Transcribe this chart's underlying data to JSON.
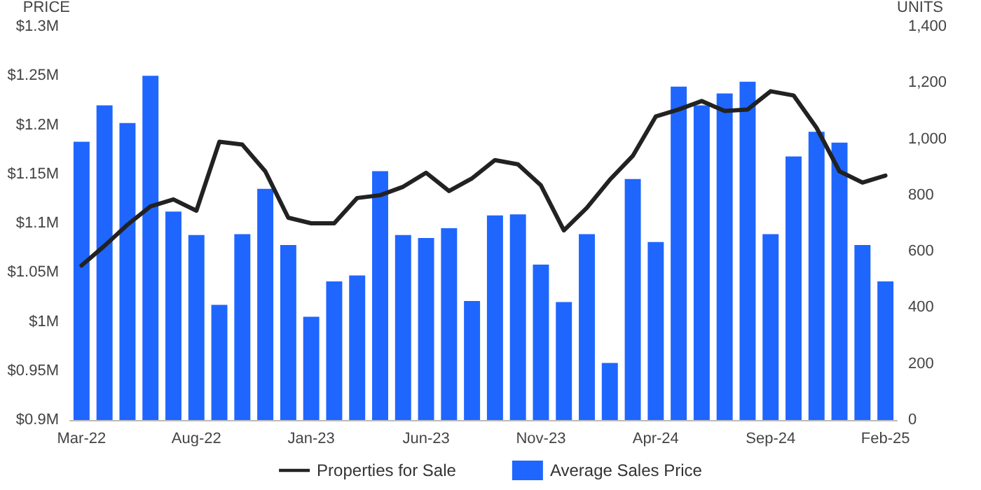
{
  "chart_data": {
    "type": "bar",
    "ylabel": "PRICE",
    "y2label": "UNITS",
    "categories": [
      "Mar-22",
      null,
      null,
      null,
      null,
      "Aug-22",
      null,
      null,
      null,
      null,
      "Jan-23",
      null,
      null,
      null,
      null,
      "Jun-23",
      null,
      null,
      null,
      null,
      "Nov-23",
      null,
      null,
      null,
      null,
      "Apr-24",
      null,
      null,
      null,
      null,
      "Sep-24",
      null,
      null,
      null,
      null,
      "Feb-25"
    ],
    "series": [
      {
        "name": "Properties for Sale",
        "type": "line",
        "axis": "y2",
        "color": "#222222",
        "values": [
          550,
          620,
          695,
          760,
          785,
          745,
          990,
          980,
          885,
          720,
          700,
          700,
          790,
          800,
          830,
          880,
          815,
          860,
          925,
          910,
          835,
          675,
          755,
          855,
          940,
          1080,
          1105,
          1135,
          1100,
          1105,
          1170,
          1155,
          1040,
          885,
          845,
          870
        ]
      },
      {
        "name": "Average Sales Price",
        "axis": "y",
        "color": "#1f66ff",
        "values": [
          1.183,
          1.22,
          1.202,
          1.25,
          1.112,
          1.088,
          1.017,
          1.089,
          1.135,
          1.078,
          1.005,
          1.041,
          1.047,
          1.153,
          1.088,
          1.085,
          1.095,
          1.021,
          1.108,
          1.109,
          1.058,
          1.02,
          1.089,
          0.958,
          1.145,
          1.081,
          1.239,
          1.22,
          1.232,
          1.244,
          1.089,
          1.168,
          1.193,
          1.182,
          1.078,
          1.041
        ]
      }
    ],
    "ylim": [
      0.9,
      1.3
    ],
    "yticks": [
      {
        "value": 0.9,
        "label": "$0.9M"
      },
      {
        "value": 0.95,
        "label": "$0.95M"
      },
      {
        "value": 1,
        "label": "$1M"
      },
      {
        "value": 1.05,
        "label": "$1.05M"
      },
      {
        "value": 1.1,
        "label": "$1.1M"
      },
      {
        "value": 1.15,
        "label": "$1.15M"
      },
      {
        "value": 1.2,
        "label": "$1.2M"
      },
      {
        "value": 1.25,
        "label": "$1.25M"
      },
      {
        "value": 1.3,
        "label": "$1.3M"
      }
    ],
    "y2lim": [
      0,
      1400
    ],
    "y2ticks": [
      0,
      200,
      400,
      600,
      800,
      {
        "value": 1000,
        "label": "1,000"
      },
      {
        "value": 1200,
        "label": "1,200"
      },
      {
        "value": 1400,
        "label": "1,400"
      }
    ],
    "legend": "bottom",
    "grid": false,
    "marker": "none",
    "line_style": "solid"
  }
}
